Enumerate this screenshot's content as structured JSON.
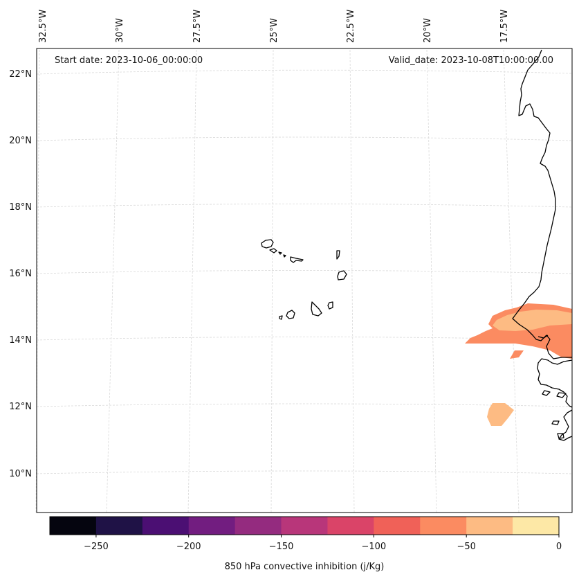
{
  "header": {
    "start_date": "Start date: 2023-10-06_00:00:00",
    "valid_date": "Valid_date: 2023-10-08T10:00:00.00"
  },
  "longitude_labels": [
    "32.5°W",
    "30°W",
    "27.5°W",
    "25°W",
    "22.5°W",
    "20°W",
    "17.5°W"
  ],
  "latitude_labels": [
    "22°N",
    "20°N",
    "18°N",
    "16°N",
    "14°N",
    "12°N",
    "10°N"
  ],
  "colorbar": {
    "label": "850 hPa convective inhibition (j/Kg)",
    "tick_labels": [
      "−250",
      "−200",
      "−150",
      "−100",
      "−50",
      "0"
    ],
    "range": [
      -275,
      0
    ],
    "levels": [
      -275,
      -250,
      -225,
      -200,
      -175,
      -150,
      -125,
      -100,
      -75,
      -50,
      -25,
      0
    ],
    "colors": [
      "#05050f",
      "#1f1246",
      "#4b0f73",
      "#721d80",
      "#942b7f",
      "#b8367a",
      "#da4468",
      "#f06158",
      "#fb8b61",
      "#fdbb83",
      "#fde8a6"
    ]
  },
  "colors": {
    "shade_light": "#fdbb83",
    "shade_mid": "#fb8b61",
    "coastline": "#000000",
    "grid": "#d9d9d9"
  }
}
